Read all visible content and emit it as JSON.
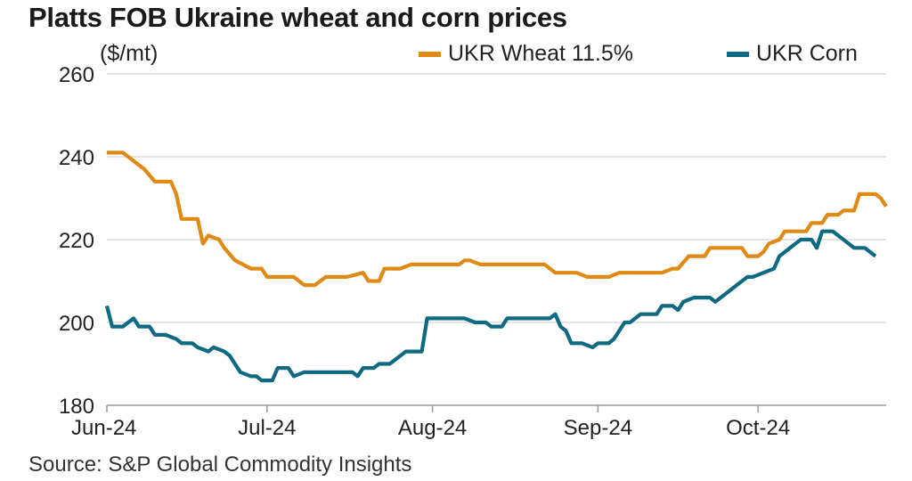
{
  "title": "Platts FOB Ukraine wheat and corn prices",
  "unit_label": "($/mt)",
  "source": "Source: S&P Global Commodity Insights",
  "colors": {
    "wheat": "#E08A16",
    "corn": "#0D6A80",
    "grid": "#d4d4d4",
    "axis": "#9a9a9a"
  },
  "chart_data": {
    "type": "line",
    "title": "Platts FOB Ukraine wheat and corn prices",
    "ylabel": "($/mt)",
    "xlabel": "",
    "ylim": [
      180,
      260
    ],
    "yticks": [
      180,
      200,
      220,
      240,
      260
    ],
    "x_tick_labels": [
      "Jun-24",
      "Jul-24",
      "Aug-24",
      "Sep-24",
      "Oct-24"
    ],
    "x_tick_dates": [
      "2024-06-03",
      "2024-07-03",
      "2024-08-03",
      "2024-09-03",
      "2024-10-03"
    ],
    "grid": true,
    "legend_position": "top-right",
    "series": [
      {
        "name": "UKR Wheat 11.5%",
        "color_key": "wheat",
        "points": [
          [
            "2024-06-03",
            241
          ],
          [
            "2024-06-06",
            241
          ],
          [
            "2024-06-07",
            240
          ],
          [
            "2024-06-09",
            238
          ],
          [
            "2024-06-10",
            237
          ],
          [
            "2024-06-12",
            234
          ],
          [
            "2024-06-15",
            234
          ],
          [
            "2024-06-16",
            231
          ],
          [
            "2024-06-17",
            225
          ],
          [
            "2024-06-20",
            225
          ],
          [
            "2024-06-21",
            219
          ],
          [
            "2024-06-22",
            221
          ],
          [
            "2024-06-24",
            220
          ],
          [
            "2024-06-25",
            218
          ],
          [
            "2024-06-27",
            215
          ],
          [
            "2024-06-30",
            213
          ],
          [
            "2024-07-02",
            213
          ],
          [
            "2024-07-03",
            211
          ],
          [
            "2024-07-05",
            211
          ],
          [
            "2024-07-08",
            211
          ],
          [
            "2024-07-10",
            209
          ],
          [
            "2024-07-12",
            209
          ],
          [
            "2024-07-14",
            211
          ],
          [
            "2024-07-18",
            211
          ],
          [
            "2024-07-21",
            212
          ],
          [
            "2024-07-22",
            210
          ],
          [
            "2024-07-24",
            210
          ],
          [
            "2024-07-25",
            213
          ],
          [
            "2024-07-28",
            213
          ],
          [
            "2024-07-30",
            214
          ],
          [
            "2024-08-08",
            214
          ],
          [
            "2024-08-09",
            215
          ],
          [
            "2024-08-10",
            215
          ],
          [
            "2024-08-12",
            214
          ],
          [
            "2024-08-24",
            214
          ],
          [
            "2024-08-26",
            212
          ],
          [
            "2024-08-30",
            212
          ],
          [
            "2024-09-01",
            211
          ],
          [
            "2024-09-05",
            211
          ],
          [
            "2024-09-07",
            212
          ],
          [
            "2024-09-15",
            212
          ],
          [
            "2024-09-17",
            213
          ],
          [
            "2024-09-18",
            213
          ],
          [
            "2024-09-20",
            216
          ],
          [
            "2024-09-23",
            216
          ],
          [
            "2024-09-24",
            218
          ],
          [
            "2024-09-30",
            218
          ],
          [
            "2024-10-01",
            216
          ],
          [
            "2024-10-03",
            216
          ],
          [
            "2024-10-04",
            217
          ],
          [
            "2024-10-05",
            219
          ],
          [
            "2024-10-07",
            220
          ],
          [
            "2024-10-08",
            222
          ],
          [
            "2024-10-12",
            222
          ],
          [
            "2024-10-13",
            224
          ],
          [
            "2024-10-15",
            224
          ],
          [
            "2024-10-16",
            226
          ],
          [
            "2024-10-18",
            226
          ],
          [
            "2024-10-19",
            227
          ],
          [
            "2024-10-21",
            227
          ],
          [
            "2024-10-22",
            231
          ],
          [
            "2024-10-25",
            231
          ],
          [
            "2024-10-26",
            230
          ],
          [
            "2024-10-27",
            228
          ]
        ]
      },
      {
        "name": "UKR Corn",
        "color_key": "corn",
        "points": [
          [
            "2024-06-03",
            204
          ],
          [
            "2024-06-04",
            199
          ],
          [
            "2024-06-06",
            199
          ],
          [
            "2024-06-08",
            201
          ],
          [
            "2024-06-09",
            199
          ],
          [
            "2024-06-11",
            199
          ],
          [
            "2024-06-12",
            197
          ],
          [
            "2024-06-14",
            197
          ],
          [
            "2024-06-16",
            196
          ],
          [
            "2024-06-17",
            195
          ],
          [
            "2024-06-19",
            195
          ],
          [
            "2024-06-20",
            194
          ],
          [
            "2024-06-22",
            193
          ],
          [
            "2024-06-23",
            194
          ],
          [
            "2024-06-25",
            193
          ],
          [
            "2024-06-26",
            192
          ],
          [
            "2024-06-28",
            188
          ],
          [
            "2024-06-30",
            187
          ],
          [
            "2024-07-01",
            187
          ],
          [
            "2024-07-02",
            186
          ],
          [
            "2024-07-04",
            186
          ],
          [
            "2024-07-05",
            189
          ],
          [
            "2024-07-07",
            189
          ],
          [
            "2024-07-08",
            187
          ],
          [
            "2024-07-10",
            188
          ],
          [
            "2024-07-19",
            188
          ],
          [
            "2024-07-20",
            187
          ],
          [
            "2024-07-21",
            189
          ],
          [
            "2024-07-23",
            189
          ],
          [
            "2024-07-24",
            190
          ],
          [
            "2024-07-26",
            190
          ],
          [
            "2024-07-27",
            191
          ],
          [
            "2024-07-29",
            193
          ],
          [
            "2024-08-01",
            193
          ],
          [
            "2024-08-02",
            201
          ],
          [
            "2024-08-09",
            201
          ],
          [
            "2024-08-11",
            200
          ],
          [
            "2024-08-13",
            200
          ],
          [
            "2024-08-14",
            199
          ],
          [
            "2024-08-16",
            199
          ],
          [
            "2024-08-17",
            201
          ],
          [
            "2024-08-25",
            201
          ],
          [
            "2024-08-26",
            202
          ],
          [
            "2024-08-27",
            199
          ],
          [
            "2024-08-28",
            198
          ],
          [
            "2024-08-29",
            195
          ],
          [
            "2024-08-31",
            195
          ],
          [
            "2024-09-02",
            194
          ],
          [
            "2024-09-03",
            195
          ],
          [
            "2024-09-05",
            195
          ],
          [
            "2024-09-06",
            196
          ],
          [
            "2024-09-08",
            200
          ],
          [
            "2024-09-09",
            200
          ],
          [
            "2024-09-11",
            202
          ],
          [
            "2024-09-14",
            202
          ],
          [
            "2024-09-15",
            204
          ],
          [
            "2024-09-17",
            204
          ],
          [
            "2024-09-18",
            203
          ],
          [
            "2024-09-19",
            205
          ],
          [
            "2024-09-21",
            206
          ],
          [
            "2024-09-24",
            206
          ],
          [
            "2024-09-25",
            205
          ],
          [
            "2024-09-26",
            206
          ],
          [
            "2024-09-28",
            208
          ],
          [
            "2024-09-29",
            209
          ],
          [
            "2024-10-01",
            211
          ],
          [
            "2024-10-02",
            211
          ],
          [
            "2024-10-04",
            212
          ],
          [
            "2024-10-06",
            213
          ],
          [
            "2024-10-07",
            216
          ],
          [
            "2024-10-09",
            218
          ],
          [
            "2024-10-10",
            219
          ],
          [
            "2024-10-11",
            220
          ],
          [
            "2024-10-13",
            220
          ],
          [
            "2024-10-14",
            218
          ],
          [
            "2024-10-15",
            222
          ],
          [
            "2024-10-17",
            222
          ],
          [
            "2024-10-18",
            221
          ],
          [
            "2024-10-20",
            219
          ],
          [
            "2024-10-21",
            218
          ],
          [
            "2024-10-23",
            218
          ],
          [
            "2024-10-24",
            217
          ],
          [
            "2024-10-25",
            216
          ]
        ]
      }
    ]
  }
}
